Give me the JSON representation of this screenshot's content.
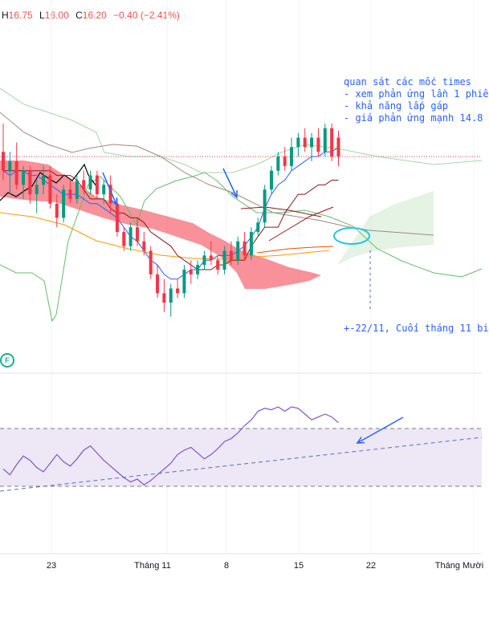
{
  "header": {
    "high_label": "H",
    "high": "16.75",
    "low_label": "L",
    "low": "16.00",
    "close_label": "C",
    "close": "16.20",
    "change": "−0.40 (−2.41%)"
  },
  "annotations": {
    "note_lines": [
      "quan sát các mốc times",
      "- xem phản ứng lần 1 phiê",
      "- khả năng lấp gáp",
      "- giá phản ứng mạnh 14.8"
    ],
    "date_note": "+-22/11, Cuối tháng 11  bi"
  },
  "flag_label": "F",
  "colors": {
    "up": "#089981",
    "down": "#f23645",
    "tenkan": "#2962ff",
    "kijun": "#8b1a1a",
    "span_b": "#a5d6a7",
    "lagging": "#66bb6a",
    "cloud_bear": "#f23645",
    "cloud_bull": "#a5d6a7",
    "rsi": "#7e57c2",
    "rsi_band": "#ede7f6",
    "annotation": "#2962ff",
    "highlight_circle": "#26c6da",
    "price_line": "#f23645"
  },
  "chart_data": [
    {
      "type": "candlestick",
      "title": "",
      "last_close": 16.2,
      "candles": [
        {
          "o": 16.3,
          "h": 16.9,
          "l": 15.7,
          "c": 15.9
        },
        {
          "o": 15.9,
          "h": 16.3,
          "l": 15.4,
          "c": 16.1
        },
        {
          "o": 16.1,
          "h": 16.5,
          "l": 15.5,
          "c": 15.6
        },
        {
          "o": 15.6,
          "h": 16.0,
          "l": 15.3,
          "c": 15.9
        },
        {
          "o": 15.9,
          "h": 16.0,
          "l": 15.2,
          "c": 15.4
        },
        {
          "o": 15.4,
          "h": 15.7,
          "l": 15.0,
          "c": 15.6
        },
        {
          "o": 15.6,
          "h": 16.0,
          "l": 15.4,
          "c": 15.8
        },
        {
          "o": 15.8,
          "h": 16.0,
          "l": 15.1,
          "c": 15.2
        },
        {
          "o": 15.2,
          "h": 15.4,
          "l": 14.7,
          "c": 14.9
        },
        {
          "o": 14.9,
          "h": 15.6,
          "l": 14.8,
          "c": 15.5
        },
        {
          "o": 15.5,
          "h": 15.7,
          "l": 15.2,
          "c": 15.3
        },
        {
          "o": 15.3,
          "h": 15.8,
          "l": 15.2,
          "c": 15.7
        },
        {
          "o": 15.7,
          "h": 15.9,
          "l": 15.4,
          "c": 15.5
        },
        {
          "o": 15.5,
          "h": 15.9,
          "l": 15.4,
          "c": 15.8
        },
        {
          "o": 15.8,
          "h": 15.9,
          "l": 15.3,
          "c": 15.4
        },
        {
          "o": 15.4,
          "h": 15.7,
          "l": 15.2,
          "c": 15.6
        },
        {
          "o": 15.6,
          "h": 15.8,
          "l": 15.0,
          "c": 15.2
        },
        {
          "o": 15.2,
          "h": 15.3,
          "l": 14.5,
          "c": 14.6
        },
        {
          "o": 14.6,
          "h": 14.7,
          "l": 14.2,
          "c": 14.3
        },
        {
          "o": 14.3,
          "h": 14.8,
          "l": 14.2,
          "c": 14.7
        },
        {
          "o": 14.7,
          "h": 14.9,
          "l": 14.3,
          "c": 14.4
        },
        {
          "o": 14.4,
          "h": 14.6,
          "l": 14.1,
          "c": 14.2
        },
        {
          "o": 14.2,
          "h": 14.3,
          "l": 13.6,
          "c": 13.7
        },
        {
          "o": 13.7,
          "h": 13.9,
          "l": 13.2,
          "c": 13.3
        },
        {
          "o": 13.3,
          "h": 13.6,
          "l": 12.9,
          "c": 13.1
        },
        {
          "o": 13.1,
          "h": 13.5,
          "l": 12.8,
          "c": 13.4
        },
        {
          "o": 13.4,
          "h": 13.6,
          "l": 13.2,
          "c": 13.3
        },
        {
          "o": 13.3,
          "h": 13.9,
          "l": 13.2,
          "c": 13.8
        },
        {
          "o": 13.8,
          "h": 14.0,
          "l": 13.5,
          "c": 13.7
        },
        {
          "o": 13.7,
          "h": 14.0,
          "l": 13.6,
          "c": 13.9
        },
        {
          "o": 13.9,
          "h": 14.2,
          "l": 13.8,
          "c": 14.1
        },
        {
          "o": 14.1,
          "h": 14.4,
          "l": 13.9,
          "c": 14.0
        },
        {
          "o": 14.0,
          "h": 14.1,
          "l": 13.7,
          "c": 13.8
        },
        {
          "o": 13.8,
          "h": 14.3,
          "l": 13.7,
          "c": 14.2
        },
        {
          "o": 14.2,
          "h": 14.4,
          "l": 13.9,
          "c": 14.0
        },
        {
          "o": 14.0,
          "h": 14.5,
          "l": 13.9,
          "c": 14.4
        },
        {
          "o": 14.4,
          "h": 14.6,
          "l": 14.0,
          "c": 14.1
        },
        {
          "o": 14.1,
          "h": 14.7,
          "l": 14.0,
          "c": 14.6
        },
        {
          "o": 14.6,
          "h": 14.9,
          "l": 14.5,
          "c": 14.8
        },
        {
          "o": 14.8,
          "h": 15.6,
          "l": 14.7,
          "c": 15.5
        },
        {
          "o": 15.5,
          "h": 16.0,
          "l": 15.4,
          "c": 15.9
        },
        {
          "o": 15.9,
          "h": 16.3,
          "l": 15.8,
          "c": 16.2
        },
        {
          "o": 16.2,
          "h": 16.4,
          "l": 15.9,
          "c": 16.0
        },
        {
          "o": 16.0,
          "h": 16.6,
          "l": 15.9,
          "c": 16.4
        },
        {
          "o": 16.4,
          "h": 16.7,
          "l": 16.2,
          "c": 16.6
        },
        {
          "o": 16.6,
          "h": 16.8,
          "l": 16.3,
          "c": 16.4
        },
        {
          "o": 16.4,
          "h": 16.7,
          "l": 16.1,
          "c": 16.6
        },
        {
          "o": 16.6,
          "h": 16.8,
          "l": 16.2,
          "c": 16.3
        },
        {
          "o": 16.3,
          "h": 16.9,
          "l": 16.2,
          "c": 16.8
        },
        {
          "o": 16.8,
          "h": 16.9,
          "l": 16.1,
          "c": 16.2
        },
        {
          "o": 16.6,
          "h": 16.75,
          "l": 16.0,
          "c": 16.2
        }
      ],
      "ichimoku": {
        "tenkan": [
          15.9,
          15.8,
          15.9,
          15.9,
          15.8,
          15.8,
          15.7,
          15.6,
          15.5,
          15.4,
          15.4,
          15.4,
          15.3,
          15.2,
          15.2,
          15.1,
          15.0,
          14.9,
          14.7,
          14.5,
          14.4,
          14.2,
          14.0,
          13.9,
          13.7,
          13.6,
          13.6,
          13.7,
          13.8,
          13.8,
          14.0,
          14.0,
          14.1,
          14.1,
          14.1,
          14.2,
          14.3,
          14.5,
          14.7,
          15.1,
          15.4,
          15.6,
          15.7,
          15.9,
          16.0,
          16.1,
          16.2,
          16.2,
          16.3,
          16.3,
          16.4
        ],
        "kijun": [
          15.9,
          15.9,
          15.9,
          15.9,
          15.9,
          15.9,
          15.9,
          15.9,
          15.8,
          15.8,
          15.8,
          15.7,
          15.5,
          15.3,
          15.3,
          15.3,
          15.1,
          15.0,
          15.0,
          14.9,
          14.9,
          14.8,
          14.6,
          14.5,
          14.4,
          14.3,
          14.1,
          14.0,
          13.9,
          13.8,
          13.8,
          13.8,
          13.9,
          13.9,
          14.0,
          14.0,
          14.0,
          14.3,
          14.5,
          14.7,
          14.7,
          14.7,
          15.0,
          15.2,
          15.4,
          15.4,
          15.5,
          15.6,
          15.6,
          15.7,
          15.7
        ]
      },
      "rsi": {
        "values": [
          42,
          38,
          45,
          51,
          48,
          43,
          40,
          46,
          52,
          47,
          44,
          49,
          55,
          58,
          53,
          48,
          44,
          40,
          36,
          33,
          35,
          31,
          34,
          38,
          42,
          46,
          52,
          55,
          57,
          53,
          49,
          52,
          56,
          61,
          63,
          67,
          72,
          76,
          82,
          84,
          83,
          85,
          82,
          85,
          84,
          80,
          76,
          78,
          80,
          78,
          74
        ],
        "upper_band": 70,
        "lower_band": 30
      },
      "x_tick_labels": [
        "23",
        "Tháng 11",
        "8",
        "15",
        "22",
        "Tháng Mười"
      ]
    }
  ]
}
